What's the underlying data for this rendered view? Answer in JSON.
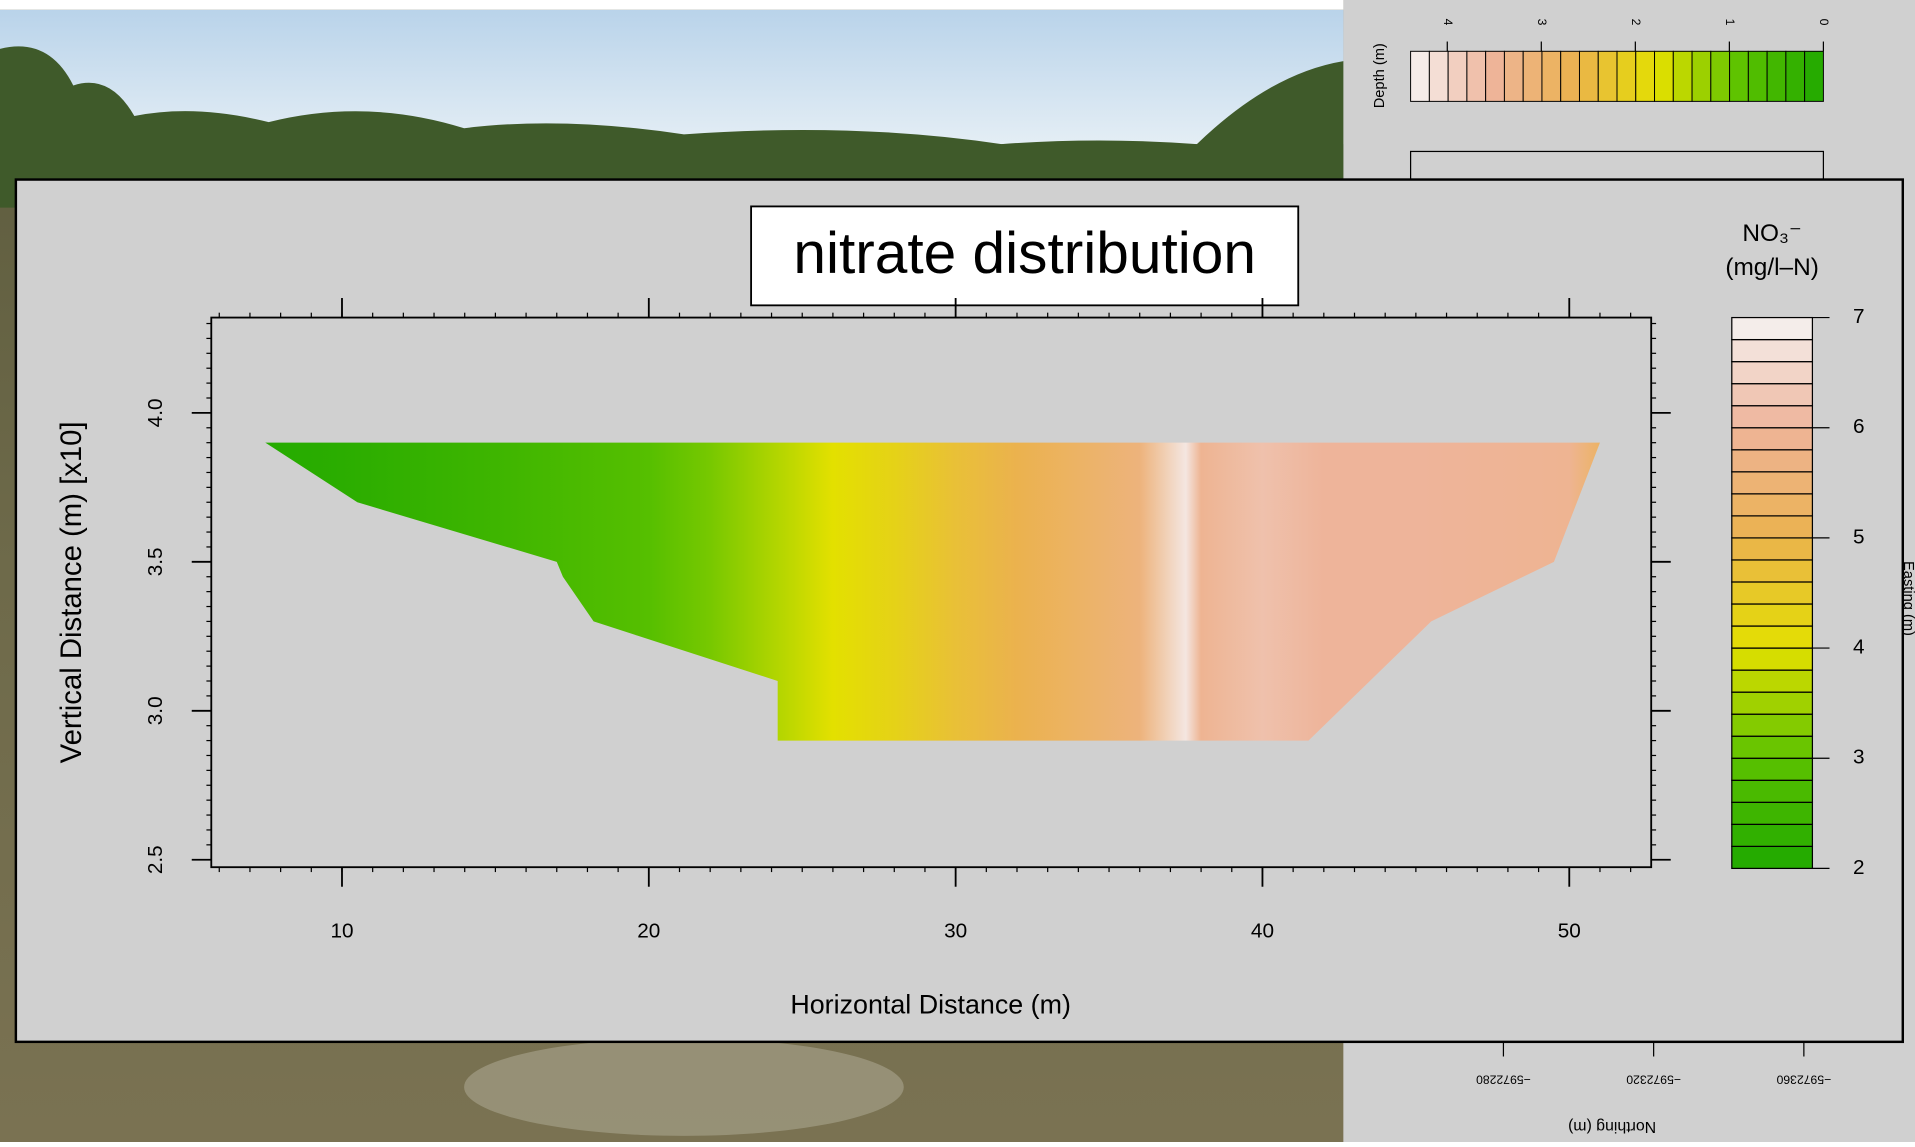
{
  "chart_data": {
    "type": "contour",
    "title": "nitrate distribution",
    "x_label": "Horizontal Distance (m)",
    "y_label": "Vertical Distance (m) [x10]",
    "xlim": [
      5.74,
      52.67
    ],
    "xticks": [
      10,
      20,
      30,
      40,
      50
    ],
    "ylim": [
      2.475,
      4.32
    ],
    "yticks": [
      2.5,
      {
        "value": 3.0,
        "label": "3.0"
      },
      3.5,
      {
        "value": 4.0,
        "label": "4.0"
      }
    ],
    "outline": {
      "x": [
        7.5,
        10.5,
        17,
        17.2,
        18.2,
        24.2,
        24.2,
        41.5,
        45.5,
        49.5,
        51
      ],
      "y": [
        3.9,
        3.7,
        3.5,
        3.45,
        3.3,
        3.1,
        2.9,
        2.9,
        3.3,
        3.5,
        3.9
      ]
    },
    "profile": {
      "x": [
        7.5,
        10,
        15,
        20,
        22,
        24,
        26,
        28,
        30,
        32,
        34,
        36,
        37.5,
        38,
        40,
        42,
        45,
        50,
        51
      ],
      "values": [
        2.1,
        2.2,
        2.5,
        2.9,
        3.2,
        3.6,
        4.0,
        4.3,
        4.7,
        5.0,
        5.3,
        5.6,
        6.8,
        5.9,
        6.2,
        6.0,
        6.0,
        5.9,
        5.3
      ]
    },
    "legend_title": "NO₃⁻",
    "legend_unit": "(mg/l–N)",
    "zlim": [
      2,
      7
    ],
    "zticks": [
      2,
      3,
      4,
      5,
      6,
      7
    ],
    "colormap": [
      "#1fa800",
      "#5cc200",
      "#e3e000",
      "#ebb24e",
      "#eeb49a",
      "#f5f3f3"
    ]
  },
  "background_panel": {
    "colorbar_label": "Depth (m)",
    "colorbar_lim": [
      4.39,
      0
    ],
    "colorbar_ticks": [
      4,
      3,
      2,
      1,
      0
    ],
    "x_label": "Northing (m)",
    "x_ticks": [
      {
        "value": -5972280,
        "label": "−5972280"
      },
      {
        "value": -5972320,
        "label": "−5972320"
      },
      {
        "value": -5972360,
        "label": "−5972360"
      }
    ],
    "side_label": "Easting (m)"
  }
}
